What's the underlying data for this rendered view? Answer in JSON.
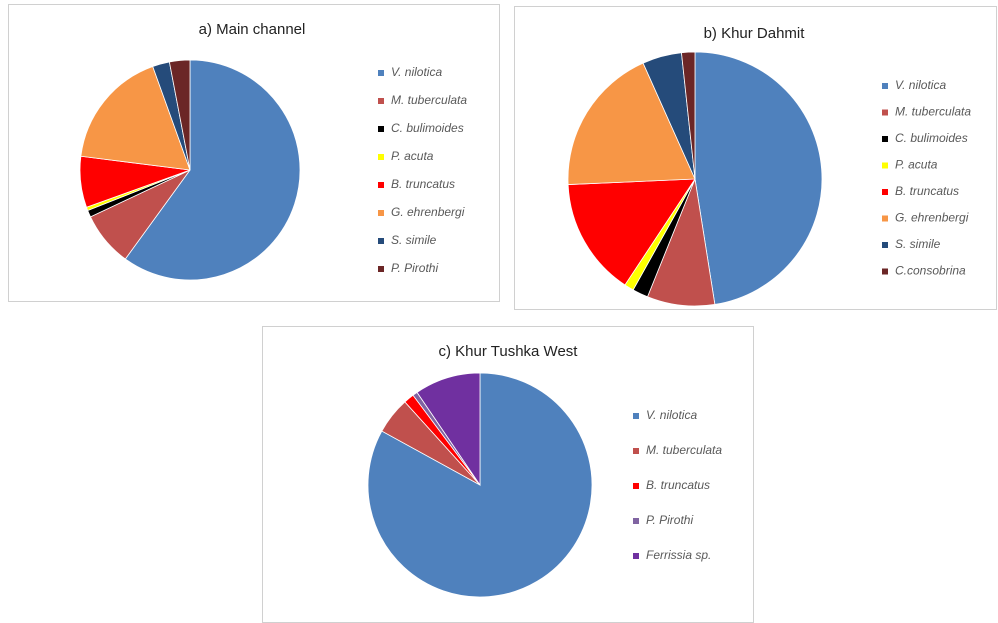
{
  "chart_data": [
    {
      "type": "pie",
      "title": "a) Main channel",
      "categories": [
        "V. nilotica",
        "M. tuberculata",
        "C. bulimoides",
        "P. acuta",
        "B. truncatus",
        "G. ehrenbergi",
        "S. simile",
        "P. Pirothi"
      ],
      "values": [
        60,
        8,
        1,
        0.5,
        7.5,
        17.5,
        2.5,
        3
      ],
      "colors": [
        "#4f81bd",
        "#c0504d",
        "#000000",
        "#ffff00",
        "#ff0000",
        "#f79646",
        "#254b7a",
        "#6b2626"
      ]
    },
    {
      "type": "pie",
      "title": "b) Khur Dahmit",
      "categories": [
        "V. nilotica",
        "M. tuberculata",
        "C. bulimoides",
        "P. acuta",
        "B. truncatus",
        "G. ehrenbergi",
        "S. simile",
        "C.consobrina"
      ],
      "values": [
        47.5,
        8.6,
        2,
        1.2,
        15,
        19,
        5,
        1.7
      ],
      "colors": [
        "#4f81bd",
        "#c0504d",
        "#000000",
        "#ffff00",
        "#ff0000",
        "#f79646",
        "#254b7a",
        "#6b2626"
      ]
    },
    {
      "type": "pie",
      "title": "c) Khur Tushka West",
      "categories": [
        "V. nilotica",
        "M. tuberculata",
        "B. truncatus",
        "P. Pirothi",
        "Ferrissia sp."
      ],
      "values": [
        83,
        5.3,
        1.5,
        0.7,
        9.5
      ],
      "colors": [
        "#4f81bd",
        "#c0504d",
        "#ff0000",
        "#8064a2",
        "#7030a0"
      ]
    }
  ]
}
